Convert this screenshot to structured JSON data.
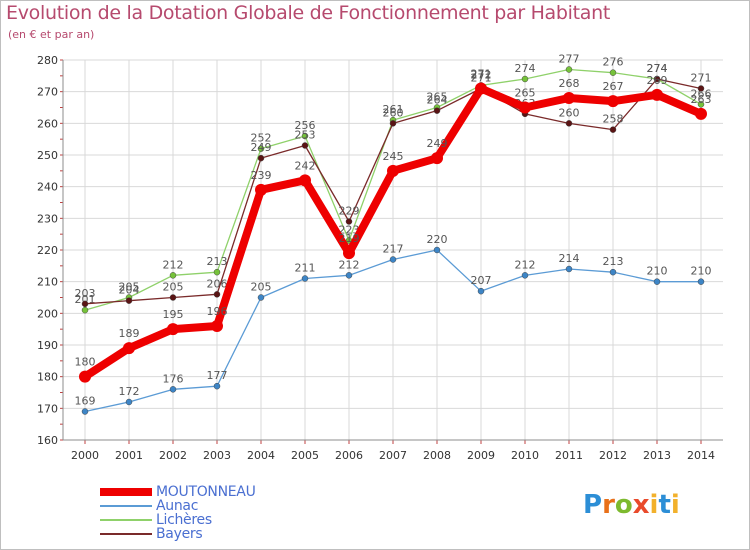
{
  "header": {
    "title": "Evolution de la Dotation Globale de Fonctionnement par Habitant",
    "subtitle": "(en € et par an)"
  },
  "logo": {
    "text": "Proxiti",
    "parts": [
      "P",
      "r",
      "o",
      "x",
      "i",
      "t",
      "i"
    ]
  },
  "chart_data": {
    "type": "line",
    "title": "Evolution de la Dotation Globale de Fonctionnement par Habitant",
    "subtitle": "(en € et par an)",
    "xlabel": "",
    "ylabel": "",
    "ylim": [
      160,
      280
    ],
    "yticks": [
      160,
      170,
      180,
      190,
      200,
      210,
      220,
      230,
      240,
      250,
      260,
      270,
      280
    ],
    "categories": [
      "2000",
      "2001",
      "2002",
      "2003",
      "2004",
      "2005",
      "2006",
      "2007",
      "2008",
      "2009",
      "2010",
      "2011",
      "2012",
      "2013",
      "2014"
    ],
    "grid": true,
    "legend_position": "bottom-left",
    "series": [
      {
        "name": "Lichères",
        "color": "#8fd16a",
        "marker": "#76c23a",
        "values": [
          201,
          205,
          212,
          213,
          252,
          256,
          223,
          261,
          265,
          272,
          274,
          277,
          276,
          274,
          266
        ],
        "emphasis": false
      },
      {
        "name": "Bayers",
        "color": "#7a2a2a",
        "marker": "#5a1414",
        "values": [
          203,
          204,
          205,
          206,
          249,
          253,
          229,
          260,
          264,
          271,
          263,
          260,
          258,
          274,
          271
        ],
        "emphasis": false
      },
      {
        "name": "Aunac",
        "color": "#5b9bd5",
        "marker": "#3d85c6",
        "values": [
          169,
          172,
          176,
          177,
          205,
          211,
          212,
          217,
          220,
          207,
          212,
          214,
          213,
          210,
          210
        ],
        "emphasis": false
      },
      {
        "name": "MOUTONNEAU",
        "color": "#ee0000",
        "marker": "#ee0000",
        "values": [
          180,
          189,
          195,
          196,
          239,
          242,
          219,
          245,
          249,
          271,
          265,
          268,
          267,
          269,
          263
        ],
        "emphasis": true
      }
    ],
    "legend_order": [
      "MOUTONNEAU",
      "Aunac",
      "Lichères",
      "Bayers"
    ]
  }
}
